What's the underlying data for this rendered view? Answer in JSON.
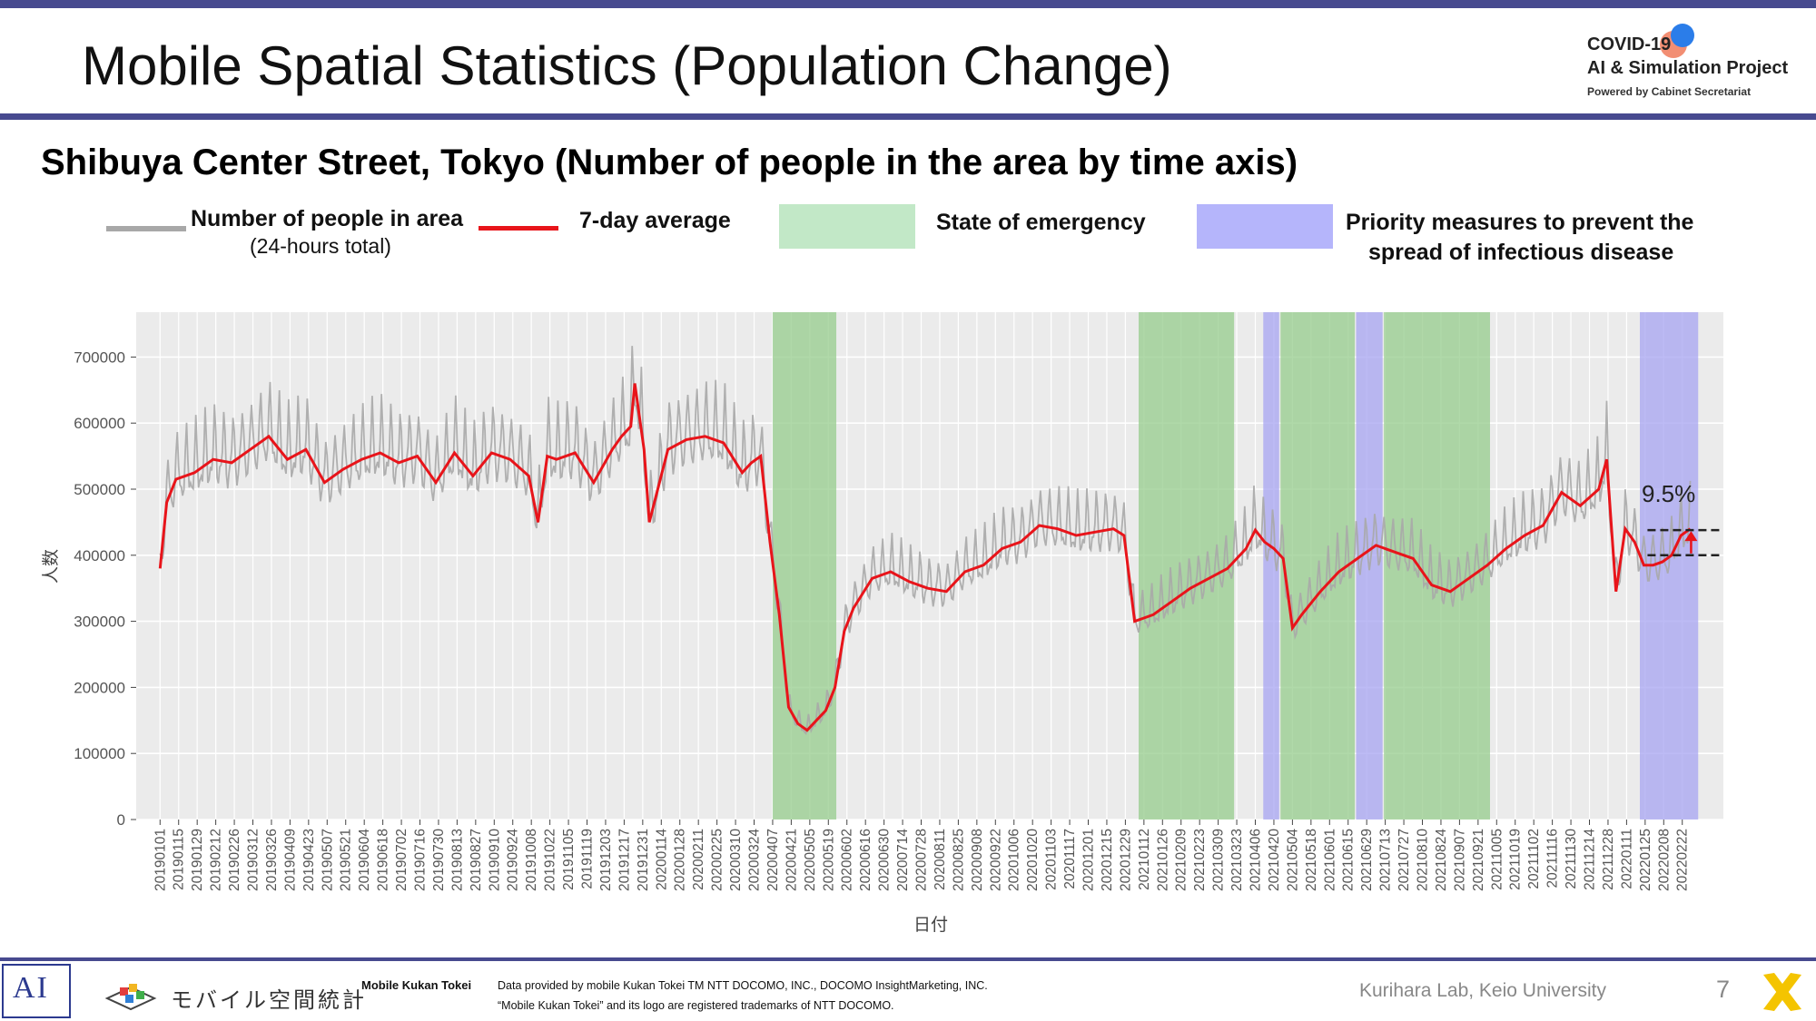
{
  "header": {
    "title": "Mobile Spatial Statistics (Population Change)",
    "brand_line1": "COVID-19",
    "brand_line2": "AI & Simulation Project",
    "brand_line3": "Powered by Cabinet Secretariat"
  },
  "legend": {
    "people_label": "Number of people in area",
    "people_sub": "(24-hours total)",
    "avg_label": "7-day average",
    "emergency_label": "State of emergency",
    "priority_label_1": "Priority measures to prevent the",
    "priority_label_2": "spread of infectious disease"
  },
  "colors": {
    "header_band": "#474a8f",
    "daily_line": "#a8a8a8",
    "avg_line": "#e8141a",
    "emergency": "#95cc8c",
    "priority": "#a7a4f2",
    "panel_bg": "#ebebeb",
    "grid": "#ffffff"
  },
  "chart_data": {
    "type": "line",
    "title": "Shibuya Center Street, Tokyo (Number of people in the area by time axis)",
    "xlabel": "日付",
    "ylabel": "人数",
    "ylim": [
      0,
      760000
    ],
    "yticks": [
      0,
      100000,
      200000,
      300000,
      400000,
      500000,
      600000,
      700000
    ],
    "x_tick_labels": [
      "20190101",
      "20190115",
      "20190129",
      "20190212",
      "20190226",
      "20190312",
      "20190326",
      "20190409",
      "20190423",
      "20190507",
      "20190521",
      "20190604",
      "20190618",
      "20190702",
      "20190716",
      "20190730",
      "20190813",
      "20190827",
      "20190910",
      "20190924",
      "20191008",
      "20191022",
      "20191105",
      "20191119",
      "20191203",
      "20191217",
      "20191231",
      "20200114",
      "20200128",
      "20200211",
      "20200225",
      "20200310",
      "20200324",
      "20200407",
      "20200421",
      "20200505",
      "20200519",
      "20200602",
      "20200616",
      "20200630",
      "20200714",
      "20200728",
      "20200811",
      "20200825",
      "20200908",
      "20200922",
      "20201006",
      "20201020",
      "20201103",
      "20201117",
      "20201201",
      "20201215",
      "20201229",
      "20210112",
      "20210126",
      "20210209",
      "20210223",
      "20210309",
      "20210323",
      "20210406",
      "20210420",
      "20210504",
      "20210518",
      "20210601",
      "20210615",
      "20210629",
      "20210713",
      "20210727",
      "20210810",
      "20210824",
      "20210907",
      "20210921",
      "20211005",
      "20211019",
      "20211102",
      "20211116",
      "20211130",
      "20211214",
      "20211228",
      "20220111",
      "20220125",
      "20220208",
      "20220222"
    ],
    "x_range": [
      "20190101",
      "20220308"
    ],
    "shaded_periods": [
      {
        "kind": "State of emergency",
        "start": "20200407",
        "end": "20200525"
      },
      {
        "kind": "State of emergency",
        "start": "20210108",
        "end": "20210321"
      },
      {
        "kind": "Priority measures to prevent the spread of infectious disease",
        "start": "20210412",
        "end": "20210424"
      },
      {
        "kind": "State of emergency",
        "start": "20210425",
        "end": "20210620"
      },
      {
        "kind": "Priority measures to prevent the spread of infectious disease",
        "start": "20210621",
        "end": "20210711"
      },
      {
        "kind": "State of emergency",
        "start": "20210712",
        "end": "20210930"
      },
      {
        "kind": "Priority measures to prevent the spread of infectious disease",
        "start": "20220121",
        "end": "20220306"
      }
    ],
    "series": [
      {
        "name": "7-day average",
        "x": [
          "20190101",
          "20190106",
          "20190113",
          "20190127",
          "20190210",
          "20190224",
          "20190310",
          "20190324",
          "20190407",
          "20190421",
          "20190505",
          "20190519",
          "20190602",
          "20190616",
          "20190630",
          "20190714",
          "20190728",
          "20190811",
          "20190825",
          "20190908",
          "20190922",
          "20191006",
          "20191013",
          "20191020",
          "20191027",
          "20191110",
          "20191124",
          "20191208",
          "20191215",
          "20191222",
          "20191225",
          "20200101",
          "20200105",
          "20200119",
          "20200202",
          "20200216",
          "20200301",
          "20200315",
          "20200322",
          "20200329",
          "20200405",
          "20200412",
          "20200419",
          "20200426",
          "20200503",
          "20200510",
          "20200517",
          "20200524",
          "20200531",
          "20200607",
          "20200621",
          "20200705",
          "20200719",
          "20200802",
          "20200816",
          "20200830",
          "20200913",
          "20200927",
          "20201011",
          "20201025",
          "20201108",
          "20201122",
          "20201206",
          "20201220",
          "20201228",
          "20210105",
          "20210112",
          "20210119",
          "20210202",
          "20210216",
          "20210302",
          "20210316",
          "20210330",
          "20210406",
          "20210413",
          "20210420",
          "20210427",
          "20210504",
          "20210511",
          "20210525",
          "20210608",
          "20210622",
          "20210706",
          "20210720",
          "20210803",
          "20210817",
          "20210831",
          "20210914",
          "20210928",
          "20211012",
          "20211026",
          "20211109",
          "20211123",
          "20211207",
          "20211221",
          "20211227",
          "20220103",
          "20220110",
          "20220117",
          "20220124",
          "20220131",
          "20220207",
          "20220214",
          "20220221",
          "20220228"
        ],
        "values": [
          380000,
          480000,
          515000,
          525000,
          545000,
          540000,
          560000,
          580000,
          545000,
          560000,
          510000,
          530000,
          545000,
          555000,
          540000,
          550000,
          510000,
          555000,
          520000,
          555000,
          545000,
          520000,
          450000,
          550000,
          545000,
          555000,
          510000,
          560000,
          580000,
          595000,
          660000,
          560000,
          450000,
          560000,
          575000,
          580000,
          570000,
          525000,
          540000,
          550000,
          420000,
          310000,
          170000,
          145000,
          135000,
          150000,
          165000,
          200000,
          285000,
          320000,
          365000,
          375000,
          360000,
          350000,
          345000,
          375000,
          385000,
          410000,
          420000,
          445000,
          440000,
          430000,
          435000,
          440000,
          430000,
          300000,
          305000,
          310000,
          330000,
          350000,
          365000,
          380000,
          410000,
          438000,
          420000,
          410000,
          395000,
          290000,
          310000,
          345000,
          375000,
          395000,
          415000,
          405000,
          395000,
          355000,
          345000,
          365000,
          385000,
          410000,
          430000,
          445000,
          495000,
          475000,
          500000,
          545000,
          345000,
          440000,
          420000,
          385000,
          385000,
          390000,
          400000,
          430000,
          440000
        ]
      },
      {
        "name": "Number of people in area",
        "values_note_range": [
          120000,
          735000
        ]
      }
    ],
    "annotations": [
      {
        "text": "9.5%",
        "from": 400000,
        "to": 438000,
        "x": "20220302"
      }
    ]
  },
  "footer": {
    "mobile_kukan_tokei": "Mobile Kukan Tokei",
    "mobile_jp": "モバイル空間統計",
    "credit_line1": "Data provided by mobile Kukan Tokei TM NTT DOCOMO, INC., DOCOMO InsightMarketing, INC.",
    "credit_line2": "“Mobile Kukan Tokei” and its logo are registered trademarks of NTT DOCOMO.",
    "lab": "Kurihara Lab, Keio University",
    "page_number": "7"
  }
}
